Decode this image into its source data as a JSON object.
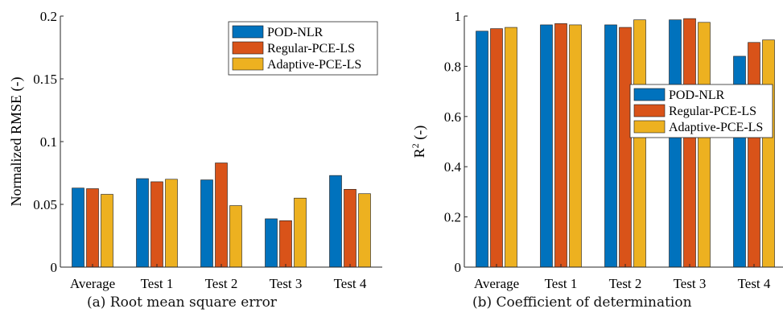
{
  "colors": {
    "series": [
      "#0072BD",
      "#D95319",
      "#EDB120"
    ],
    "axis": "#262626"
  },
  "captions": {
    "a": "(a) Root mean square error",
    "b": "(b) Coefficient of determination"
  },
  "chart_data": [
    {
      "type": "bar",
      "ylabel": "Normalized RMSE (-)",
      "ylim": [
        0,
        0.2
      ],
      "yticks": [
        "0",
        "0.05",
        "0.1",
        "0.15",
        "0.2"
      ],
      "categories": [
        "Average",
        "Test 1",
        "Test 2",
        "Test 3",
        "Test 4"
      ],
      "legend_position": "top-right",
      "series": [
        {
          "name": "POD-NLR",
          "values": [
            0.063,
            0.0705,
            0.0695,
            0.0385,
            0.073
          ]
        },
        {
          "name": "Regular-PCE-LS",
          "values": [
            0.0625,
            0.068,
            0.083,
            0.037,
            0.062
          ]
        },
        {
          "name": "Adaptive-PCE-LS",
          "values": [
            0.058,
            0.07,
            0.049,
            0.055,
            0.0585
          ]
        }
      ]
    },
    {
      "type": "bar",
      "ylabel": "R",
      "ylabel_sup": "2",
      "ylabel_tail": " (-)",
      "ylim": [
        0,
        1
      ],
      "yticks": [
        "0",
        "0.2",
        "0.4",
        "0.6",
        "0.8",
        "1"
      ],
      "categories": [
        "Average",
        "Test 1",
        "Test 2",
        "Test 3",
        "Test 4"
      ],
      "legend_position": "center-right",
      "series": [
        {
          "name": "POD-NLR",
          "values": [
            0.94,
            0.965,
            0.965,
            0.985,
            0.84
          ]
        },
        {
          "name": "Regular-PCE-LS",
          "values": [
            0.95,
            0.97,
            0.955,
            0.99,
            0.895
          ]
        },
        {
          "name": "Adaptive-PCE-LS",
          "values": [
            0.955,
            0.965,
            0.985,
            0.975,
            0.905
          ]
        }
      ]
    }
  ]
}
